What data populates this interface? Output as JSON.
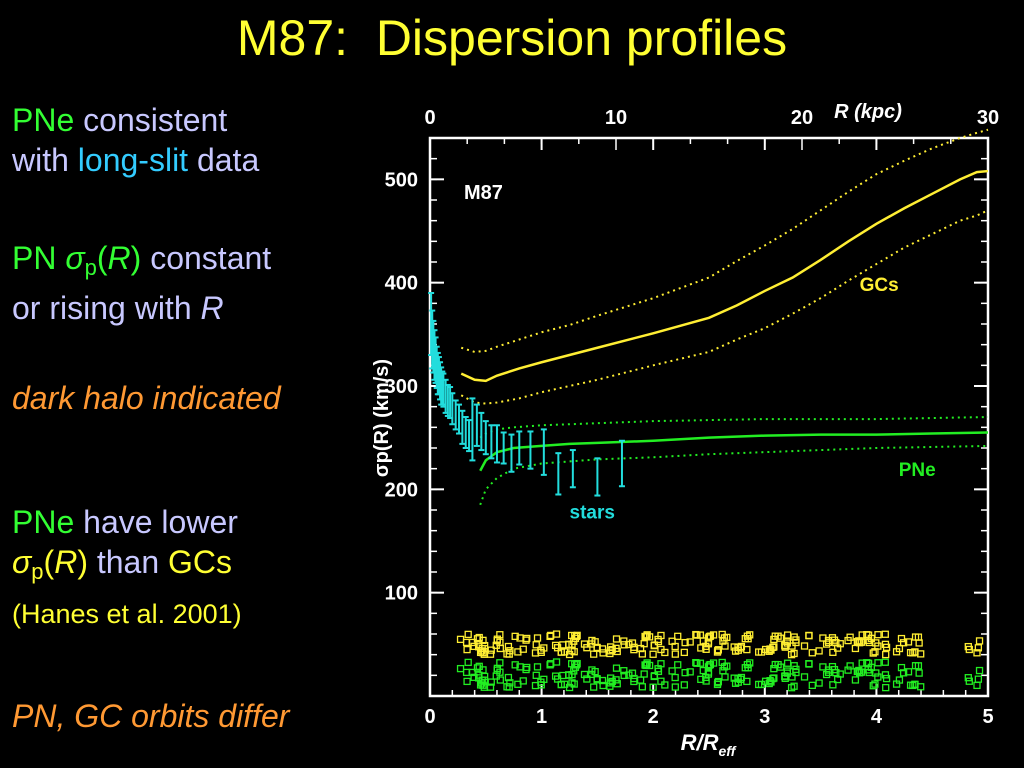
{
  "slide": {
    "title": "M87:  Dispersion profiles",
    "b1": {
      "pne": "PNe",
      "rest1": " consistent",
      "with": "with ",
      "longslit": "long-slit",
      "data": " data"
    },
    "b2": {
      "pn": "PN ",
      "sigma": "σ",
      "p": "p",
      "R_open": "(",
      "R": "R",
      "R_close": ")",
      "constant": " constant",
      "line2": "or  rising with ",
      "R2": "R"
    },
    "b3": {
      "text": "dark halo indicated"
    },
    "b4": {
      "pne": "PNe",
      "rest": " have lower",
      "sigma": "σ",
      "p": "p",
      "R_open": "(",
      "R": "R",
      "R_close": ")",
      "than": " than ",
      "gcs": "GCs",
      "ref": "(Hanes et al. 2001)"
    },
    "b5": {
      "text": "PN, GC orbits differ"
    }
  },
  "chart_data": {
    "type": "line",
    "panel_label": "M87",
    "xlabel_main": "R/R",
    "xlabel_sub": "eff",
    "ylabel": "σp(R)  (km/s)",
    "top_axis_label": "R (kpc)",
    "xlim": [
      0,
      5
    ],
    "ylim": [
      0,
      540
    ],
    "top_axis_kpc_per_reff": 6.0,
    "x_ticks": [
      "0",
      "1",
      "2",
      "3",
      "4",
      "5"
    ],
    "y_ticks": [
      "100",
      "200",
      "300",
      "400",
      "500"
    ],
    "top_ticks": [
      "0",
      "10",
      "20",
      "30"
    ],
    "colors": {
      "gc": "#ffee33",
      "pne": "#22ee22",
      "stars": "#22dddd"
    },
    "series": [
      {
        "name": "GCs",
        "color": "#ffee33",
        "x": [
          0.28,
          0.4,
          0.5,
          0.6,
          0.8,
          1.0,
          1.25,
          1.5,
          2.0,
          2.5,
          2.75,
          3.0,
          3.25,
          3.5,
          3.75,
          4.0,
          4.25,
          4.5,
          4.75,
          4.9,
          5.0
        ],
        "mean": [
          312,
          306,
          305,
          310,
          317,
          323,
          330,
          337,
          351,
          366,
          378,
          392,
          405,
          422,
          440,
          457,
          472,
          486,
          500,
          507,
          508
        ],
        "upper": [
          337,
          333,
          334,
          338,
          345,
          352,
          359,
          368,
          385,
          405,
          421,
          436,
          452,
          470,
          488,
          505,
          518,
          530,
          540,
          545,
          548
        ],
        "lower": [
          291,
          284,
          283,
          284,
          288,
          294,
          300,
          306,
          320,
          333,
          345,
          356,
          370,
          385,
          402,
          418,
          434,
          447,
          460,
          465,
          470
        ]
      },
      {
        "name": "PNe",
        "color": "#22ee22",
        "x": [
          0.45,
          0.5,
          0.6,
          0.75,
          1.0,
          1.25,
          1.5,
          2.0,
          2.5,
          3.0,
          3.5,
          4.0,
          4.5,
          5.0
        ],
        "mean": [
          218,
          228,
          236,
          240,
          242,
          244,
          245,
          247,
          250,
          252,
          253,
          253,
          254,
          255
        ],
        "upper": [
          250,
          254,
          258,
          260,
          262,
          263,
          264,
          266,
          267,
          268,
          268,
          268,
          269,
          270
        ],
        "lower": [
          185,
          200,
          211,
          220,
          225,
          227,
          229,
          231,
          234,
          236,
          238,
          240,
          241,
          242
        ]
      },
      {
        "name": "stars",
        "color": "#22dddd",
        "x": [
          0.01,
          0.02,
          0.03,
          0.04,
          0.05,
          0.06,
          0.07,
          0.08,
          0.09,
          0.1,
          0.11,
          0.12,
          0.14,
          0.16,
          0.18,
          0.2,
          0.23,
          0.26,
          0.29,
          0.32,
          0.35,
          0.38,
          0.42,
          0.46,
          0.5,
          0.55,
          0.6,
          0.66,
          0.73,
          0.8,
          0.9,
          1.02,
          1.15,
          1.28,
          1.5,
          1.72
        ],
        "y": [
          360,
          345,
          338,
          330,
          325,
          318,
          312,
          310,
          305,
          300,
          298,
          296,
          290,
          286,
          284,
          278,
          272,
          268,
          260,
          255,
          252,
          258,
          262,
          256,
          250,
          246,
          244,
          240,
          235,
          240,
          238,
          236,
          215,
          220,
          212,
          225
        ],
        "err": [
          30,
          28,
          25,
          24,
          22,
          20,
          20,
          18,
          18,
          18,
          16,
          16,
          16,
          15,
          15,
          15,
          14,
          14,
          16,
          15,
          15,
          30,
          20,
          18,
          16,
          16,
          18,
          15,
          18,
          16,
          18,
          22,
          20,
          18,
          18,
          22
        ]
      },
      {
        "name": "GC sample",
        "color": "#ffee33",
        "note": "individual GC radial positions",
        "y_band": [
          40,
          60
        ]
      },
      {
        "name": "PN sample",
        "color": "#22ee22",
        "note": "individual PN radial positions",
        "y_band": [
          8,
          33
        ]
      }
    ],
    "annotations": [
      {
        "text": "GCs",
        "x": 3.85,
        "y": 392,
        "color": "#ffee33"
      },
      {
        "text": "PNe",
        "x": 4.2,
        "y": 213,
        "color": "#22ee22"
      },
      {
        "text": "stars",
        "x": 1.25,
        "y": 172,
        "color": "#22dddd"
      }
    ]
  }
}
